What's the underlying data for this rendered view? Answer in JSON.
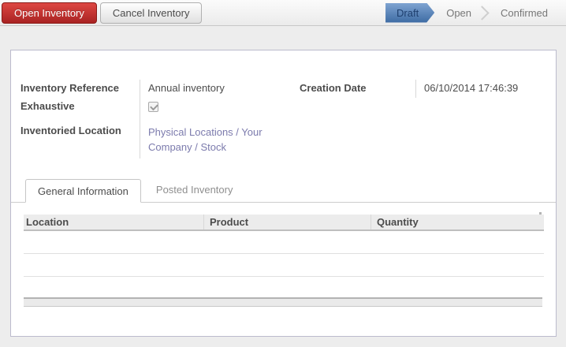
{
  "toolbar": {
    "open_button": "Open Inventory",
    "cancel_button": "Cancel Inventory",
    "statusbar": {
      "steps": [
        {
          "label": "Draft",
          "active": true
        },
        {
          "label": "Open",
          "active": false
        },
        {
          "label": "Confirmed",
          "active": false
        }
      ]
    }
  },
  "form": {
    "fields": {
      "inventory_reference": {
        "label": "Inventory Reference",
        "value": "Annual inventory"
      },
      "exhaustive": {
        "label": "Exhaustive",
        "checked": true
      },
      "inventoried_location": {
        "label": "Inventoried Location",
        "value": "Physical Locations / Your Company / Stock"
      },
      "creation_date": {
        "label": "Creation Date",
        "value": "06/10/2014 17:46:39"
      }
    },
    "tabs": [
      {
        "label": "General Information",
        "active": true
      },
      {
        "label": "Posted Inventory",
        "active": false
      }
    ],
    "table": {
      "columns": [
        "Location",
        "Product",
        "Quantity"
      ],
      "rows": []
    }
  },
  "colors": {
    "accent_red": "#aa2424",
    "status_active_blue": "#3d6ba3",
    "link_purple": "#7c7bad",
    "panel_border": "#bcbbcd",
    "header_bg": "#ececec"
  }
}
